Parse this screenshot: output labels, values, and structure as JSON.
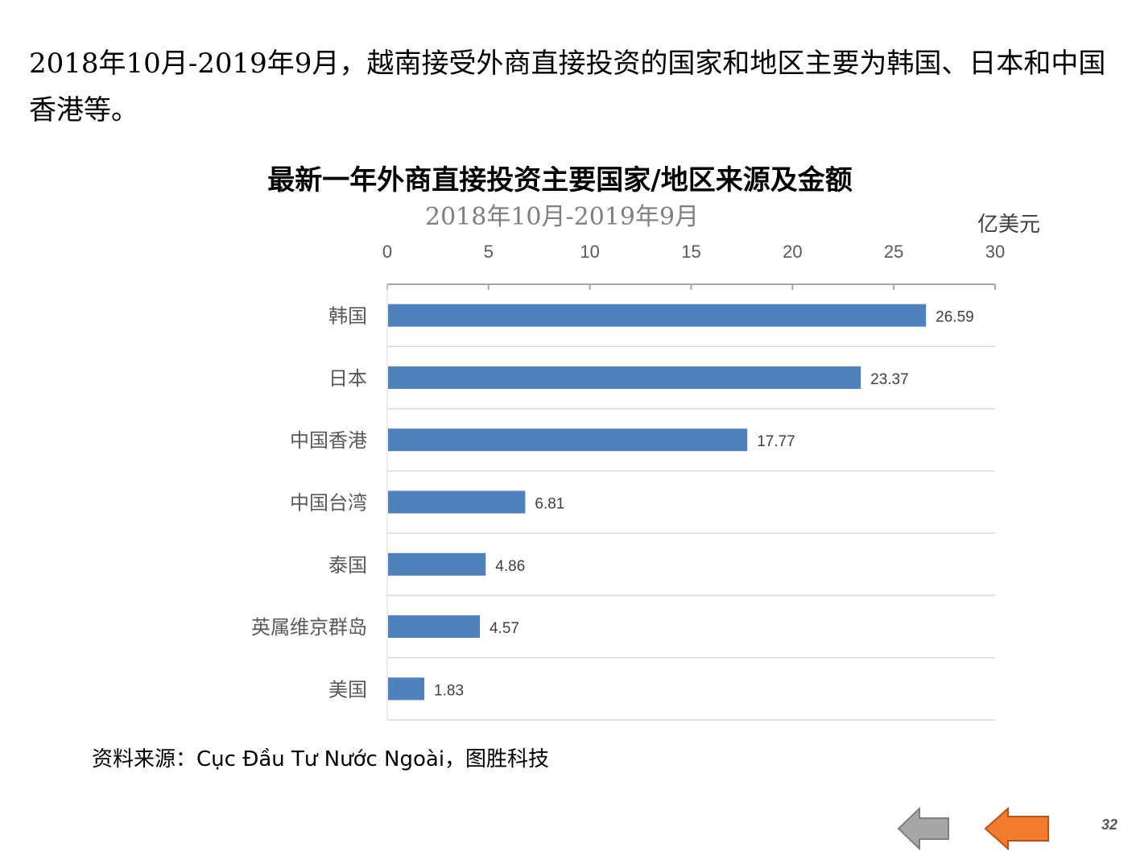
{
  "intro_text": "2018年10月-2019年9月，越南接受外商直接投资的国家和地区主要为韩国、日本和中国香港等。",
  "chart_data": {
    "type": "bar",
    "orientation": "horizontal",
    "title": "最新一年外商直接投资主要国家/地区来源及金额",
    "subtitle": "2018年10月-2019年9月",
    "unit": "亿美元",
    "categories": [
      "韩国",
      "日本",
      "中国香港",
      "中国台湾",
      "泰国",
      "英属维京群岛",
      "美国"
    ],
    "values": [
      26.59,
      23.37,
      17.77,
      6.81,
      4.86,
      4.57,
      1.83
    ],
    "value_labels": [
      "26.59",
      "23.37",
      "17.77",
      "6.81",
      "4.86",
      "4.57",
      "1.83"
    ],
    "xlim": [
      0,
      30
    ],
    "x_ticks": [
      "0",
      "5",
      "10",
      "15",
      "20",
      "25",
      "30"
    ],
    "x_axis_position": "top",
    "grid": "horizontal separators",
    "bar_color": "#4f81bd"
  },
  "source_text": "资料来源：Cục Đầu Tư Nước Ngoài，图胜科技",
  "nav": {
    "prev_color": "#a6a6a6",
    "next_color": "#f07c2c",
    "prev_icon": "left-arrow-icon",
    "next_icon": "left-arrow-icon"
  },
  "page_number": "32"
}
